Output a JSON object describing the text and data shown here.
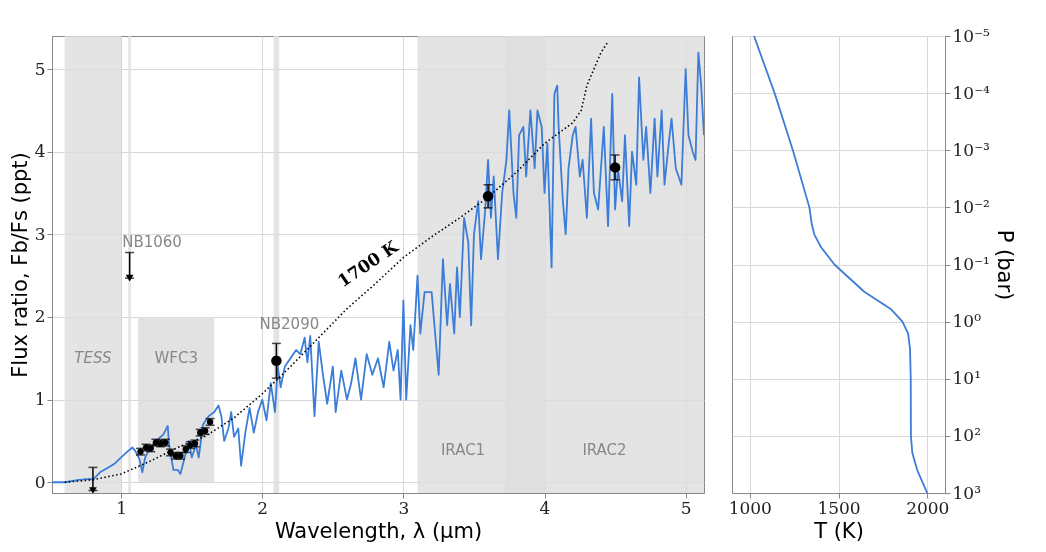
{
  "chart_data": [
    {
      "type": "line",
      "xlabel": "Wavelength, λ (μm)",
      "ylabel": "Flux ratio, Fb/Fs (ppt)",
      "xlim": [
        0.51,
        5.13
      ],
      "ylim": [
        -0.13,
        5.4
      ],
      "xticks": [
        1,
        2,
        3,
        4,
        5
      ],
      "yticks": [
        0,
        1,
        2,
        3,
        4,
        5
      ],
      "grid": true,
      "bands": [
        {
          "axis": "x",
          "from": 0.6,
          "to": 1.0,
          "label": "TESS",
          "color": "#dddddd"
        },
        {
          "axis": "x",
          "from": 1.05,
          "to": 1.07,
          "label": "NB1060",
          "color": "#dddddd"
        },
        {
          "axis": "x",
          "from": 2.08,
          "to": 2.12,
          "label": "NB2090",
          "color": "#dddddd"
        },
        {
          "axis": "x",
          "from": 3.1,
          "to": 4.0,
          "label": "IRAC1",
          "color": "#dddddd"
        },
        {
          "axis": "x",
          "from": 3.72,
          "to": 5.13,
          "label": "IRAC2",
          "color": "#dddddd"
        }
      ],
      "annotations": [
        "1700 K"
      ],
      "series": [
        {
          "type": "area",
          "name": "WFC3",
          "color": "#dddddd",
          "x": [
            1.12,
            1.12,
            1.3,
            1.5,
            1.66,
            1.66
          ],
          "values": [
            0,
            2,
            2,
            2,
            2,
            0
          ]
        },
        {
          "color": "#3b7dd8",
          "x": [
            0.51,
            0.6,
            0.7,
            0.78,
            0.8,
            0.85,
            0.9,
            0.95,
            1.0,
            1.05,
            1.08,
            1.1,
            1.13,
            1.15,
            1.17,
            1.2,
            1.25,
            1.28,
            1.3,
            1.32,
            1.33,
            1.34,
            1.37,
            1.4,
            1.42,
            1.45,
            1.48,
            1.5,
            1.53,
            1.55,
            1.58,
            1.62,
            1.66,
            1.69,
            1.71,
            1.73,
            1.76,
            1.78,
            1.8,
            1.83,
            1.85,
            1.88,
            1.91,
            1.94,
            1.97,
            2.0,
            2.03,
            2.06,
            2.09,
            2.11,
            2.13,
            2.16,
            2.2,
            2.24,
            2.27,
            2.3,
            2.32,
            2.34,
            2.37,
            2.4,
            2.43,
            2.46,
            2.5,
            2.52,
            2.56,
            2.6,
            2.63,
            2.66,
            2.7,
            2.74,
            2.78,
            2.82,
            2.86,
            2.9,
            2.93,
            2.96,
            2.98,
            3.0,
            3.02,
            3.05,
            3.07,
            3.1,
            3.12,
            3.15,
            3.2,
            3.22,
            3.25,
            3.28,
            3.31,
            3.33,
            3.36,
            3.38,
            3.4,
            3.43,
            3.46,
            3.48,
            3.5,
            3.53,
            3.55,
            3.58,
            3.6,
            3.62,
            3.64,
            3.67,
            3.7,
            3.73,
            3.75,
            3.78,
            3.8,
            3.82,
            3.85,
            3.87,
            3.9,
            3.93,
            3.95,
            3.98,
            4.0,
            4.02,
            4.05,
            4.07,
            4.09,
            4.1,
            4.13,
            4.15,
            4.17,
            4.2,
            4.22,
            4.25,
            4.27,
            4.3,
            4.33,
            4.35,
            4.38,
            4.4,
            4.42,
            4.45,
            4.48,
            4.5,
            4.52,
            4.55,
            4.57,
            4.6,
            4.62,
            4.65,
            4.67,
            4.7,
            4.72,
            4.75,
            4.78,
            4.8,
            4.83,
            4.85,
            4.88,
            4.9,
            4.93,
            4.97,
            5.0,
            5.02,
            5.05,
            5.07,
            5.09,
            5.11,
            5.13
          ],
          "values": [
            0.0,
            0.0,
            0.03,
            0.04,
            0.03,
            0.12,
            0.17,
            0.22,
            0.3,
            0.38,
            0.42,
            0.38,
            0.28,
            0.12,
            0.3,
            0.4,
            0.5,
            0.55,
            0.58,
            0.65,
            0.68,
            0.45,
            0.15,
            0.15,
            0.1,
            0.3,
            0.5,
            0.3,
            0.45,
            0.3,
            0.7,
            0.8,
            0.85,
            0.93,
            0.8,
            0.5,
            0.65,
            0.85,
            0.55,
            0.65,
            0.2,
            0.6,
            0.9,
            0.6,
            0.85,
            1.0,
            0.75,
            1.2,
            0.85,
            1.4,
            1.15,
            1.4,
            1.5,
            1.6,
            1.55,
            1.75,
            1.45,
            1.77,
            0.8,
            1.7,
            1.3,
            0.95,
            1.4,
            0.85,
            1.35,
            1.0,
            1.2,
            1.5,
            1.0,
            1.55,
            1.3,
            1.5,
            1.15,
            1.7,
            1.35,
            1.6,
            1.0,
            2.2,
            1.0,
            1.9,
            1.6,
            2.5,
            1.8,
            2.3,
            2.3,
            1.9,
            1.3,
            2.7,
            1.9,
            2.4,
            1.8,
            2.6,
            2.0,
            3.2,
            2.9,
            1.9,
            3.0,
            3.4,
            2.7,
            3.3,
            3.9,
            3.2,
            3.7,
            2.7,
            3.5,
            3.9,
            4.5,
            3.5,
            3.2,
            4.2,
            4.3,
            3.7,
            4.5,
            3.8,
            4.5,
            4.3,
            3.5,
            4.1,
            2.6,
            4.7,
            4.8,
            4.3,
            3.4,
            3.0,
            3.8,
            4.2,
            4.3,
            3.7,
            3.9,
            3.2,
            4.4,
            3.5,
            3.3,
            3.8,
            4.3,
            3.1,
            4.7,
            3.3,
            3.8,
            3.4,
            4.2,
            3.1,
            4.0,
            3.6,
            4.9,
            3.9,
            4.3,
            3.5,
            4.4,
            3.7,
            4.5,
            3.6,
            4.1,
            4.4,
            3.8,
            3.6,
            5.0,
            4.2,
            4.0,
            3.9,
            5.2,
            4.8,
            4.2
          ]
        },
        {
          "type": "line",
          "line_style": "dotted",
          "color": "#000000",
          "x": [
            0.6,
            0.8,
            1.0,
            1.2,
            1.4,
            1.6,
            1.8,
            2.0,
            2.2,
            2.4,
            2.6,
            2.8,
            3.0,
            3.2,
            3.4,
            3.6,
            3.8,
            4.0,
            4.2,
            4.26,
            4.3,
            4.35,
            4.4,
            4.45
          ],
          "values": [
            0.0,
            0.03,
            0.1,
            0.25,
            0.42,
            0.56,
            0.78,
            1.07,
            1.4,
            1.75,
            2.1,
            2.4,
            2.72,
            2.97,
            3.2,
            3.45,
            3.75,
            4.1,
            4.35,
            4.5,
            4.8,
            5.0,
            5.2,
            5.33
          ]
        },
        {
          "type": "scatter",
          "marker": "circle",
          "color": "#000000",
          "x": [
            1.137,
            1.176,
            1.21,
            1.246,
            1.28,
            1.313,
            1.35,
            1.386,
            1.42,
            1.458,
            1.49,
            1.523,
            1.56,
            1.595,
            1.63
          ],
          "values": [
            0.37,
            0.42,
            0.41,
            0.48,
            0.47,
            0.48,
            0.36,
            0.32,
            0.32,
            0.4,
            0.45,
            0.47,
            0.6,
            0.62,
            0.73
          ],
          "errors": [
            0.04,
            0.04,
            0.04,
            0.04,
            0.04,
            0.04,
            0.04,
            0.04,
            0.04,
            0.04,
            0.04,
            0.04,
            0.04,
            0.04,
            0.04
          ]
        },
        {
          "type": "scatter",
          "marker": "circle",
          "color": "#000000",
          "x": [
            2.1,
            3.6,
            4.5
          ],
          "values": [
            1.47,
            3.46,
            3.81
          ],
          "errors": [
            0.21,
            0.14,
            0.15
          ]
        },
        {
          "type": "scatter",
          "marker": "triangle",
          "color": "#000000",
          "x": [
            0.8,
            1.06
          ],
          "values": [
            -0.1,
            2.47
          ],
          "errors": [
            [
              -0.1,
              0.18
            ],
            [
              2.47,
              2.78
            ]
          ]
        }
      ]
    },
    {
      "type": "line",
      "xlabel": "T (K)",
      "ylabel": "P (bar)",
      "log": "y",
      "xlim": [
        900,
        2100
      ],
      "ylim": [
        1000,
        1e-05
      ],
      "xticks": [
        1000,
        1500,
        2000
      ],
      "yticks": [
        {
          "value": 1e-05,
          "label": "10⁻⁵"
        },
        {
          "value": 0.0001,
          "label": "10⁻⁴"
        },
        {
          "value": 0.001,
          "label": "10⁻³"
        },
        {
          "value": 0.01,
          "label": "10⁻²"
        },
        {
          "value": 0.1,
          "label": "10⁻¹"
        },
        {
          "value": 1,
          "label": "10⁰"
        },
        {
          "value": 10,
          "label": "10¹"
        },
        {
          "value": 100,
          "label": "10²"
        },
        {
          "value": 1000,
          "label": "10³"
        }
      ],
      "grid": true,
      "series": [
        {
          "color": "#3b7dd8",
          "x": [
            1024,
            1140,
            1243,
            1336,
            1350,
            1364,
            1402,
            1477,
            1645,
            1794,
            1860,
            1892,
            1903,
            1907,
            1908,
            1916,
            1944,
            2000
          ],
          "values": [
            1e-05,
            0.0001,
            0.001,
            0.01,
            0.02,
            0.03,
            0.05,
            0.1,
            0.3,
            0.6,
            1,
            1.6,
            3,
            10,
            100,
            200,
            400,
            1000
          ]
        }
      ]
    }
  ]
}
